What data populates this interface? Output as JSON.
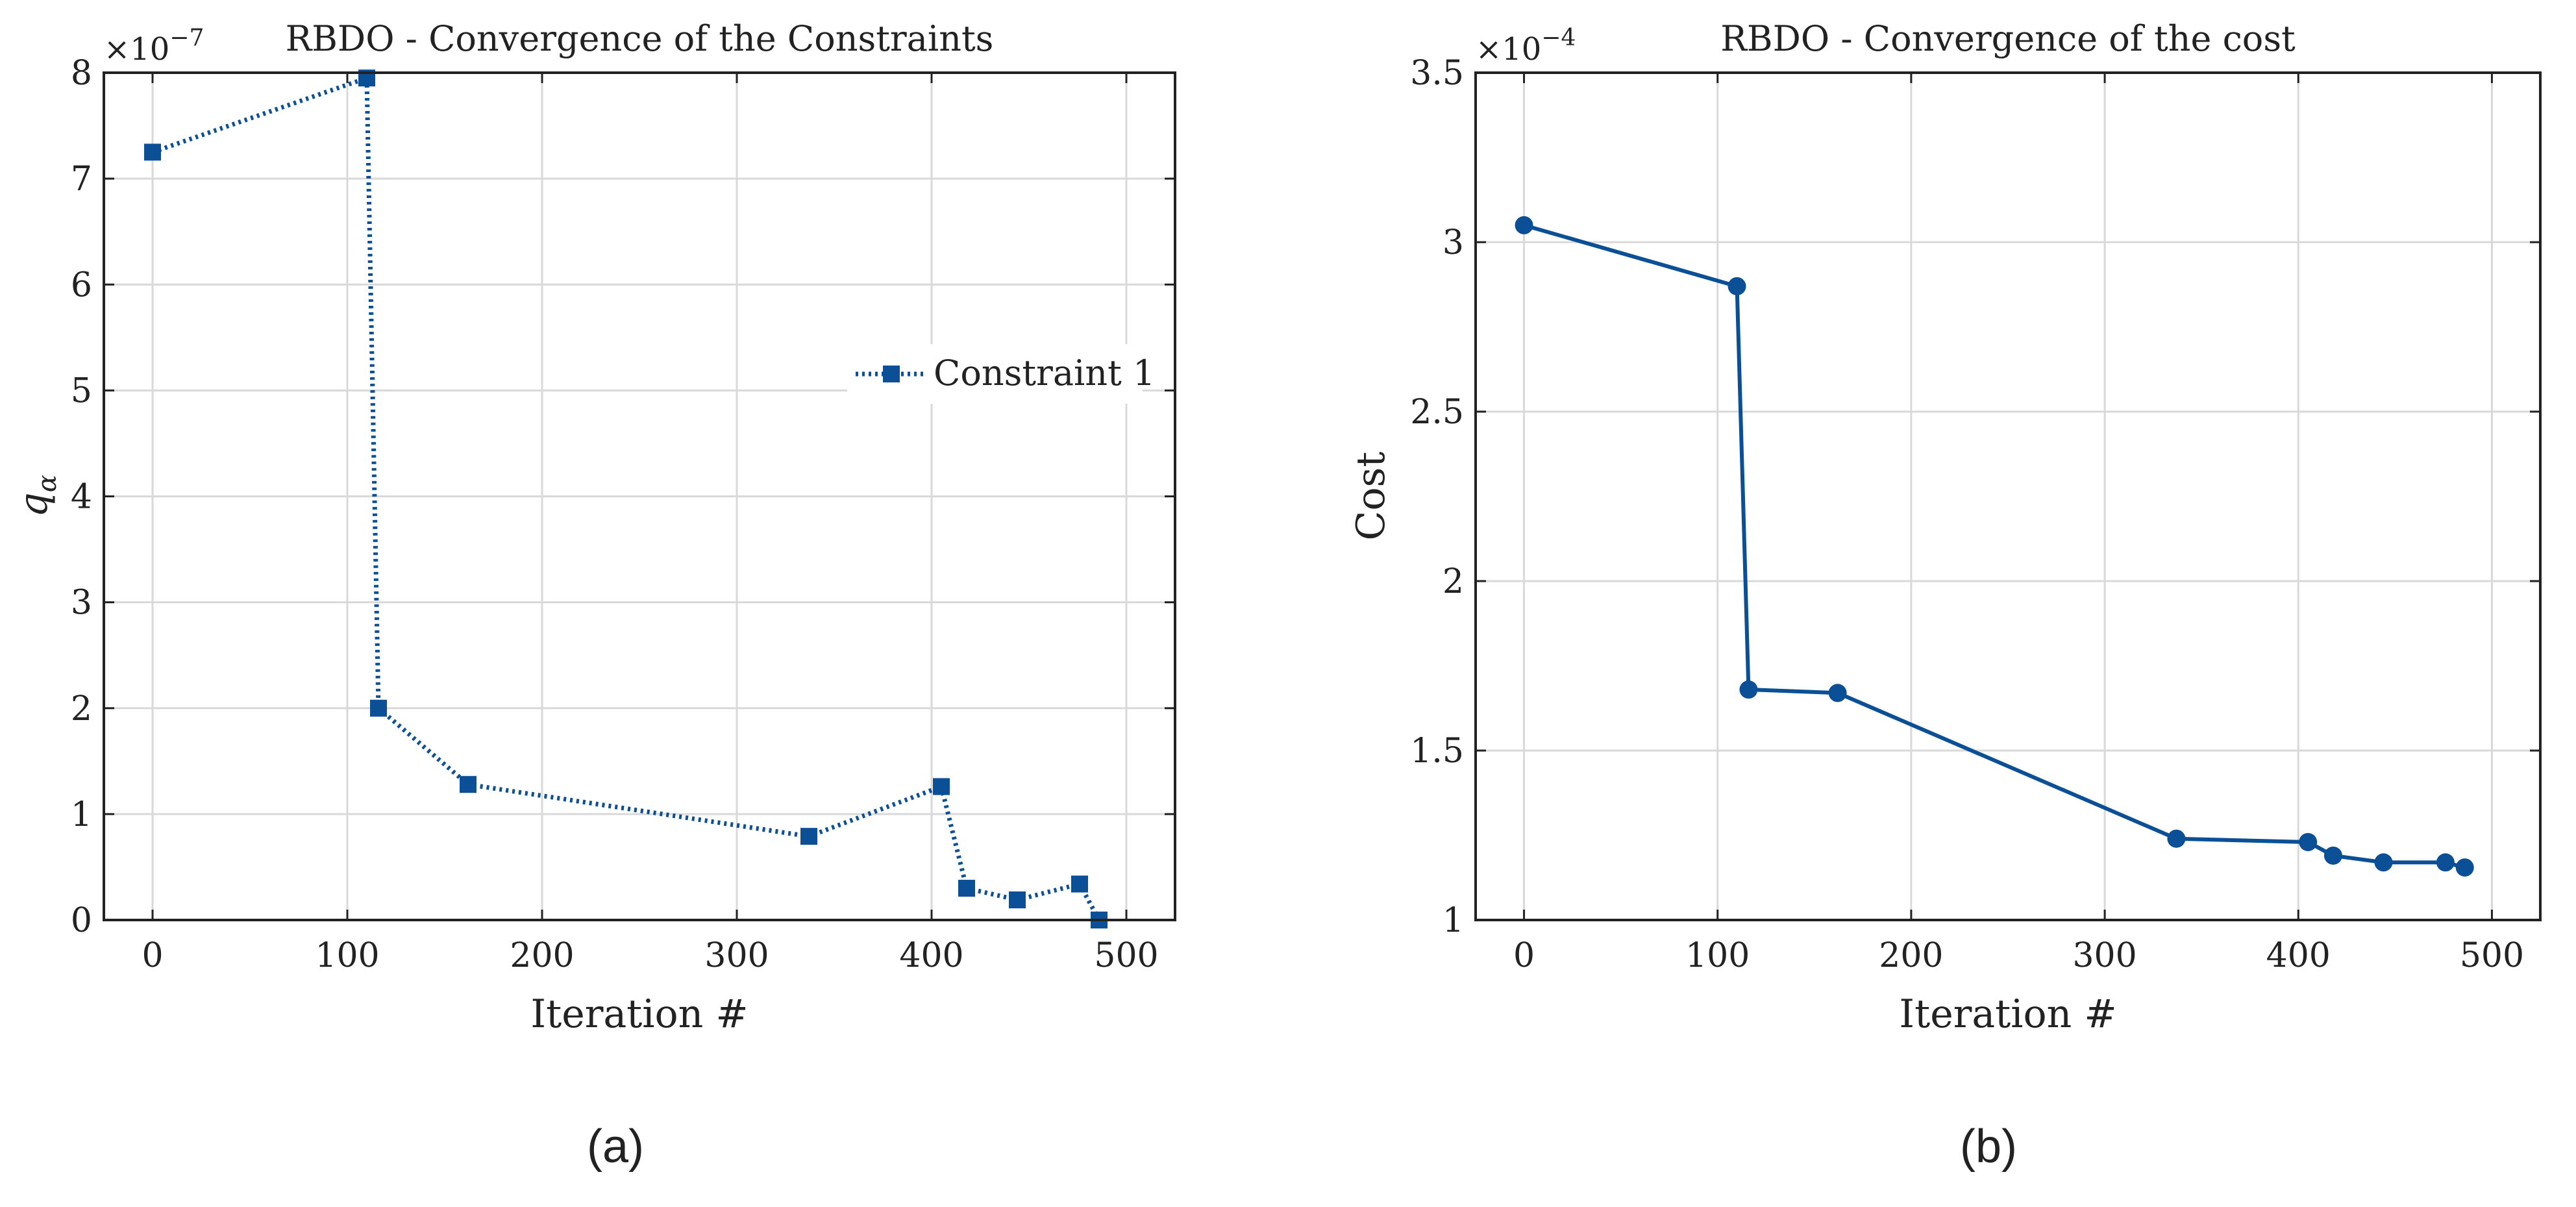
{
  "colors": {
    "series": "#0b4f96",
    "axis": "#222222",
    "grid": "#d9d9d9"
  },
  "chart_data": [
    {
      "type": "line",
      "title": "RBDO - Convergence of the Constraints",
      "xlabel": "Iteration #",
      "ylabel": "qα",
      "ylabel_main": "q",
      "ylabel_sub": "α",
      "scale_base": "×10",
      "scale_exp": "−7",
      "xlim": [
        -25,
        525
      ],
      "ylim": [
        0,
        8
      ],
      "xticks": [
        0,
        100,
        200,
        300,
        400,
        500
      ],
      "yticks": [
        0,
        1,
        2,
        3,
        4,
        5,
        6,
        7,
        8
      ],
      "grid": true,
      "legend_placement": "right",
      "marker": "square",
      "line_style": "dotted",
      "series": [
        {
          "name": "Constraint 1",
          "x": [
            0,
            110,
            116,
            162,
            337,
            405,
            418,
            444,
            476,
            486
          ],
          "y": [
            7.25,
            7.95,
            2.0,
            1.28,
            0.79,
            1.26,
            0.3,
            0.19,
            0.34,
            0.0
          ]
        }
      ],
      "caption": "(a)"
    },
    {
      "type": "line",
      "title": "RBDO - Convergence of the cost",
      "xlabel": "Iteration #",
      "ylabel": "Cost",
      "scale_base": "×10",
      "scale_exp": "−4",
      "xlim": [
        -25,
        525
      ],
      "ylim": [
        1,
        3.5
      ],
      "xticks": [
        0,
        100,
        200,
        300,
        400,
        500
      ],
      "yticks": [
        1,
        1.5,
        2,
        2.5,
        3,
        3.5
      ],
      "grid": true,
      "marker": "circle",
      "line_style": "solid",
      "series": [
        {
          "name": "Cost",
          "x": [
            0,
            110,
            116,
            162,
            337,
            405,
            418,
            444,
            476,
            486
          ],
          "y": [
            3.05,
            2.87,
            1.68,
            1.67,
            1.24,
            1.23,
            1.19,
            1.17,
            1.17,
            1.155
          ]
        }
      ],
      "caption": "(b)"
    }
  ]
}
